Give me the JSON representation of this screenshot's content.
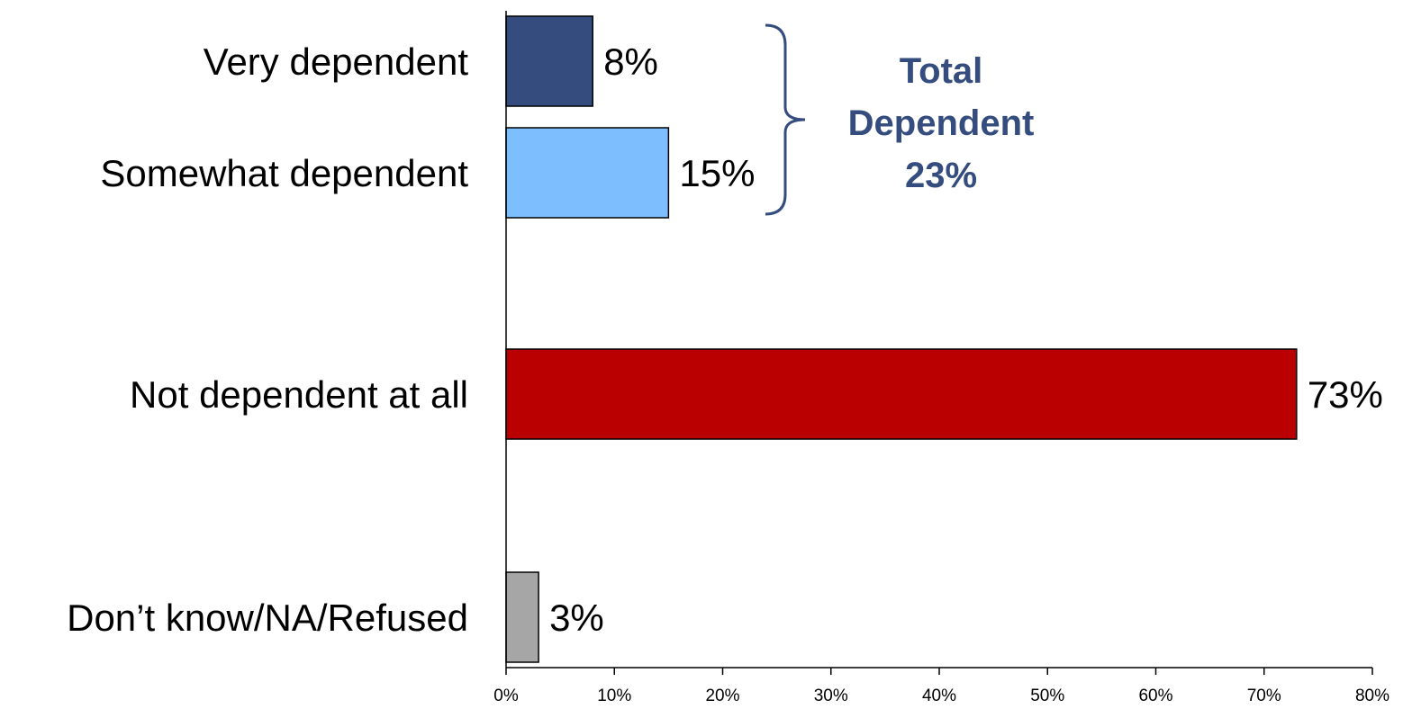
{
  "chart_data": {
    "type": "bar",
    "orientation": "horizontal",
    "categories": [
      "Very dependent",
      "Somewhat dependent",
      "Not dependent at all",
      "Don’t know/NA/Refused"
    ],
    "values": [
      8,
      15,
      73,
      3
    ],
    "value_labels": [
      "8%",
      "15%",
      "73%",
      "3%"
    ],
    "colors": [
      "#344C7E",
      "#7DBEFF",
      "#BA0000",
      "#A6A6A6"
    ],
    "xlim": [
      0,
      80
    ],
    "xticks": [
      0,
      10,
      20,
      30,
      40,
      50,
      60,
      70,
      80
    ],
    "xtick_labels": [
      "0%",
      "10%",
      "20%",
      "30%",
      "40%",
      "50%",
      "60%",
      "70%",
      "80%"
    ],
    "title": "",
    "xlabel": "",
    "ylabel": "",
    "grid": false,
    "legend": "none",
    "annotation": {
      "lines": [
        "Total",
        "Dependent",
        "23%"
      ],
      "color": "#344C7E",
      "brackets_categories": [
        "Very dependent",
        "Somewhat dependent"
      ]
    }
  }
}
